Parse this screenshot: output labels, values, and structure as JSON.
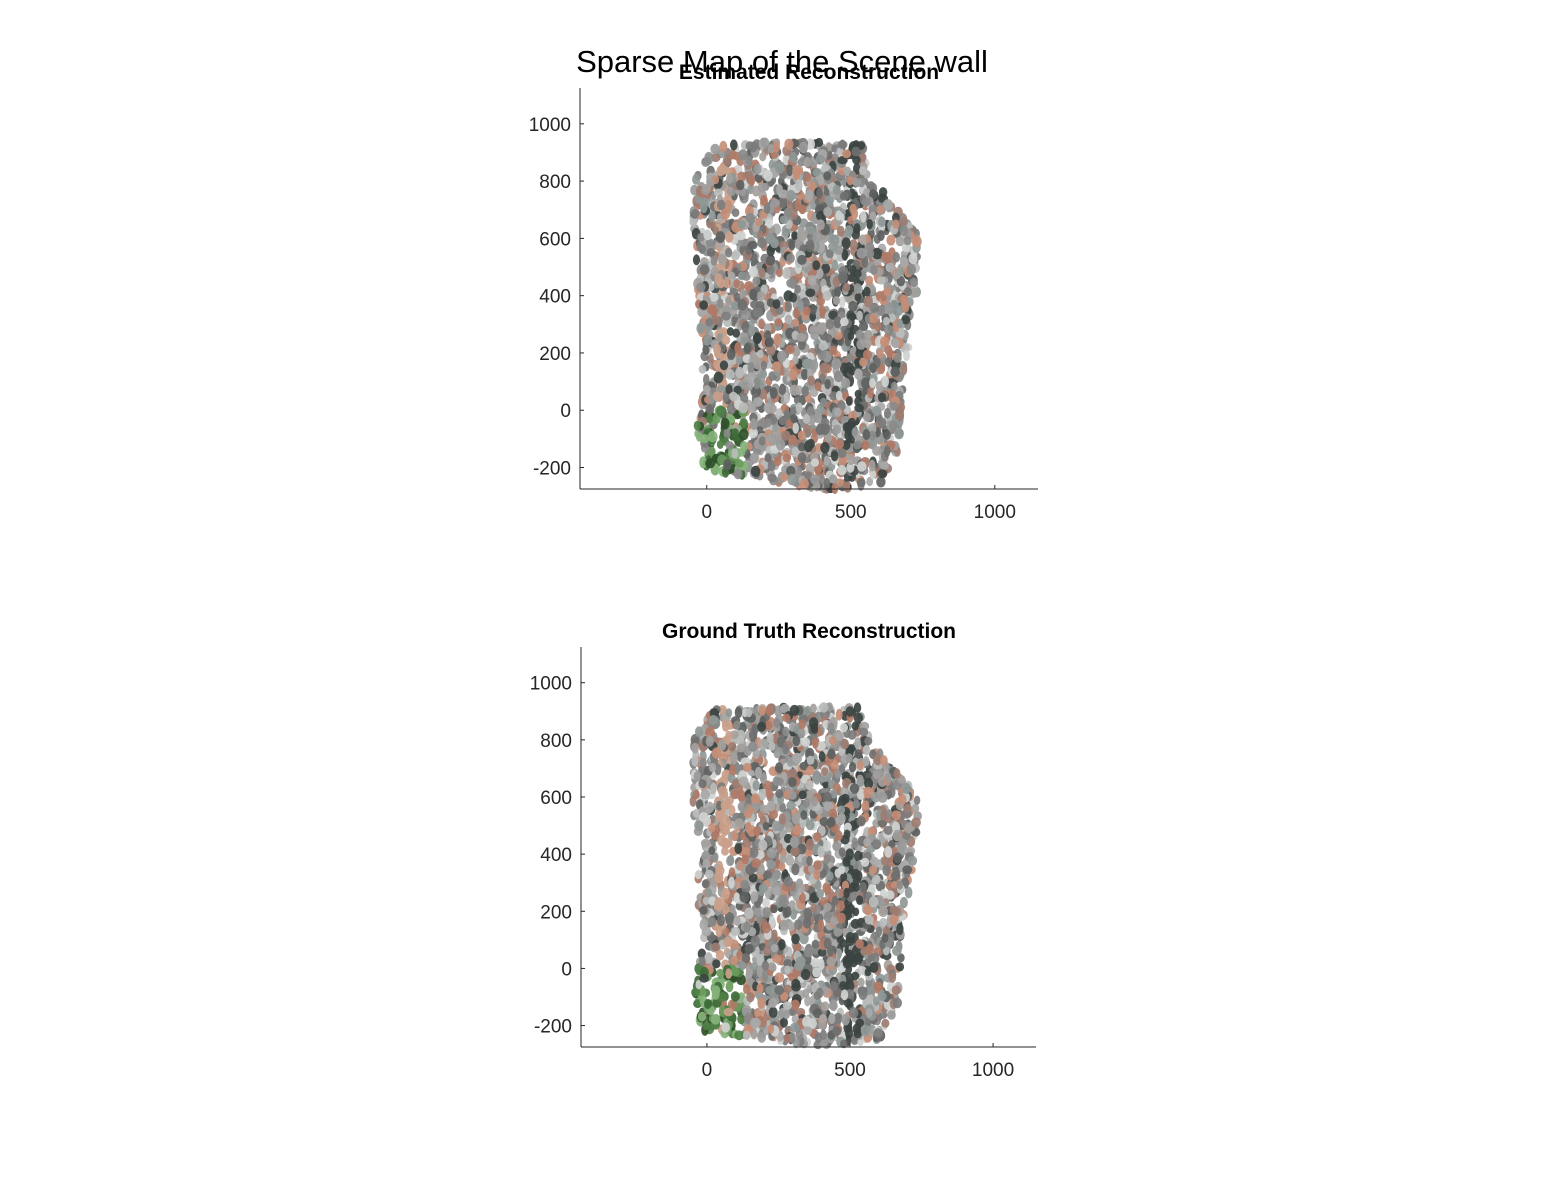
{
  "figure": {
    "title": "Sparse Map of the Scene wall"
  },
  "chart_data": [
    {
      "type": "scatter",
      "title": "Estimated Reconstruction",
      "xlabel": "",
      "ylabel": "",
      "xlim": [
        -440,
        1150
      ],
      "ylim": [
        -275,
        1125
      ],
      "xticks": [
        0,
        500,
        1000
      ],
      "yticks": [
        -200,
        0,
        200,
        400,
        600,
        800,
        1000
      ],
      "grid": false,
      "legend": "none",
      "point_cloud": {
        "outline": [
          [
            40,
            935
          ],
          [
            550,
            935
          ],
          [
            560,
            845
          ],
          [
            670,
            690
          ],
          [
            740,
            600
          ],
          [
            730,
            420
          ],
          [
            680,
            60
          ],
          [
            670,
            -130
          ],
          [
            620,
            -250
          ],
          [
            420,
            -280
          ],
          [
            180,
            -240
          ],
          [
            -10,
            -205
          ],
          [
            -40,
            -60
          ],
          [
            -10,
            60
          ],
          [
            -50,
            700
          ],
          [
            -40,
            820
          ]
        ],
        "colors": [
          "#8a8a8a",
          "#9a9a9a",
          "#7c7c7c",
          "#a8a8a8",
          "#b9bcbb",
          "#6e6f6e",
          "#9d7d72",
          "#b07a67",
          "#c48e77",
          "#5d6160",
          "#3c4442",
          "#cfd2d0",
          "#8e9896",
          "#a3a09c"
        ],
        "green_colors": [
          "#6a9a5d",
          "#4f7f46",
          "#2f4f2a",
          "#86b27a",
          "#3e6b38"
        ]
      }
    },
    {
      "type": "scatter",
      "title": "Ground Truth Reconstruction",
      "xlabel": "",
      "ylabel": "",
      "xlim": [
        -440,
        1150
      ],
      "ylim": [
        -275,
        1125
      ],
      "xticks": [
        0,
        500,
        1000
      ],
      "yticks": [
        -200,
        0,
        200,
        400,
        600,
        800,
        1000
      ],
      "grid": false,
      "legend": "none",
      "point_cloud": {
        "outline": [
          [
            30,
            915
          ],
          [
            540,
            915
          ],
          [
            555,
            830
          ],
          [
            670,
            680
          ],
          [
            745,
            595
          ],
          [
            725,
            410
          ],
          [
            680,
            60
          ],
          [
            665,
            -130
          ],
          [
            610,
            -250
          ],
          [
            410,
            -275
          ],
          [
            170,
            -240
          ],
          [
            -20,
            -220
          ],
          [
            -45,
            -60
          ],
          [
            -20,
            60
          ],
          [
            -55,
            690
          ],
          [
            -45,
            810
          ]
        ],
        "colors": [
          "#8a8a8a",
          "#9a9a9a",
          "#7c7c7c",
          "#a8a8a8",
          "#b9bcbb",
          "#6e6f6e",
          "#9d7d72",
          "#b07a67",
          "#c48e77",
          "#5d6160",
          "#3c4442",
          "#cfd2d0",
          "#8e9896",
          "#a3a09c"
        ],
        "green_colors": [
          "#6a9a5d",
          "#4f7f46",
          "#2f4f2a",
          "#86b27a",
          "#3e6b38"
        ]
      }
    }
  ]
}
